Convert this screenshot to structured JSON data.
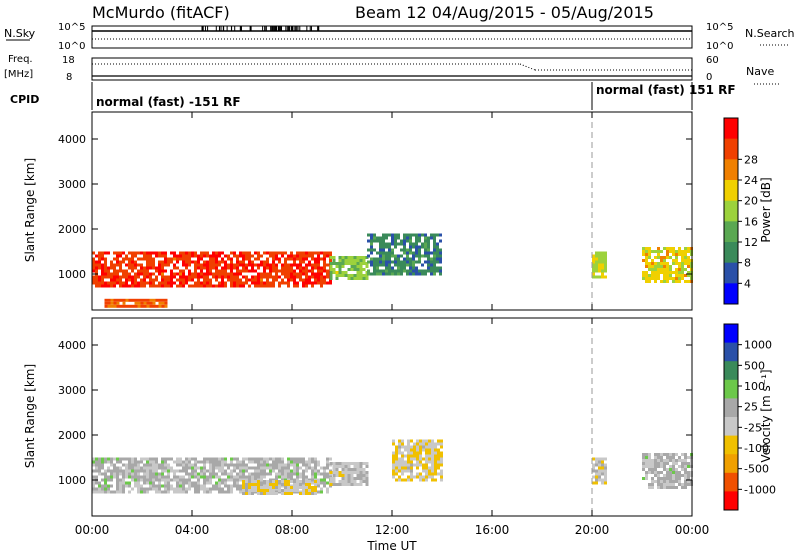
{
  "header": {
    "title": "McMurdo (fitACF)",
    "beam_date": "Beam 12 04/Aug/2015 - 05/Aug/2015"
  },
  "status_panels": {
    "nsky_label": "N.Sky",
    "nsky_ticks": [
      "10^5",
      "10^0"
    ],
    "nsearch_label": "N.Search",
    "nsearch_ticks": [
      "10^5",
      "10^0"
    ],
    "freq_label": "Freq.",
    "freq_unit": "[MHz]",
    "freq_ticks": [
      "18",
      "8"
    ],
    "nave_label": "Nave",
    "nave_ticks": [
      "60",
      "0"
    ],
    "cpid_label": "CPID",
    "cpid_segments": [
      {
        "label": "normal (fast) -151 RF",
        "start_hour": 0,
        "end_hour": 20
      },
      {
        "label": "normal (fast) 151 RF",
        "start_hour": 20,
        "end_hour": 24
      }
    ]
  },
  "colors": {
    "power_scale": [
      "#0000ff",
      "#2a50a8",
      "#3a8a5a",
      "#5aa852",
      "#9cd23c",
      "#f0d000",
      "#f08000",
      "#f04000",
      "#ff0000"
    ],
    "velocity_scale": [
      "#ff0000",
      "#f05000",
      "#f0a000",
      "#f0c000",
      "#c8c8c8",
      "#a8a8a8",
      "#6cc84a",
      "#3a8a5a",
      "#2a50a8",
      "#0000ff"
    ]
  },
  "chart_data": [
    {
      "type": "heatmap",
      "title": "",
      "xlabel": "Time UT",
      "ylabel": "Slant Range [km]",
      "xlim": [
        0,
        24
      ],
      "ylim": [
        200,
        4600
      ],
      "xticks": [
        "00:00",
        "04:00",
        "08:00",
        "12:00",
        "16:00",
        "20:00",
        "00:00"
      ],
      "yticks": [
        1000,
        2000,
        3000,
        4000
      ],
      "colorbar": {
        "label": "Power [dB]",
        "ticks": [
          "4",
          "8",
          "12",
          "16",
          "20",
          "24",
          "28"
        ],
        "range": [
          0,
          30
        ]
      },
      "series": [
        {
          "time_range": [
            0,
            9.5
          ],
          "range_km": [
            700,
            1500
          ],
          "value": 26
        },
        {
          "time_range": [
            9.5,
            11
          ],
          "range_km": [
            900,
            1400
          ],
          "value": 14
        },
        {
          "time_range": [
            11,
            14
          ],
          "range_km": [
            1000,
            1900
          ],
          "value": 8
        },
        {
          "time_range": [
            0.5,
            3
          ],
          "range_km": [
            250,
            450
          ],
          "value": 24
        },
        {
          "time_range": [
            20,
            20.5
          ],
          "range_km": [
            900,
            1500
          ],
          "value": 16
        },
        {
          "time_range": [
            22,
            24
          ],
          "range_km": [
            800,
            1600
          ],
          "value": 18
        }
      ]
    },
    {
      "type": "heatmap",
      "title": "",
      "xlabel": "Time UT",
      "ylabel": "Slant Range [km]",
      "xlim": [
        0,
        24
      ],
      "ylim": [
        200,
        4600
      ],
      "xticks": [
        "00:00",
        "04:00",
        "08:00",
        "12:00",
        "16:00",
        "20:00",
        "00:00"
      ],
      "yticks": [
        1000,
        2000,
        3000,
        4000
      ],
      "colorbar": {
        "label": "Velocity [m s⁻¹]",
        "ticks": [
          "1000",
          "500",
          "100",
          "25",
          "-25",
          "-100",
          "-500",
          "-1000"
        ],
        "range": [
          -1200,
          1200
        ]
      },
      "series": [
        {
          "time_range": [
            0,
            9.5
          ],
          "range_km": [
            700,
            1500
          ],
          "value": 60
        },
        {
          "time_range": [
            6,
            9
          ],
          "range_km": [
            700,
            1000
          ],
          "value": -150
        },
        {
          "time_range": [
            9.5,
            11
          ],
          "range_km": [
            900,
            1400
          ],
          "value": -50
        },
        {
          "time_range": [
            12,
            14
          ],
          "range_km": [
            1000,
            1900
          ],
          "value": -200
        },
        {
          "time_range": [
            20,
            20.5
          ],
          "range_km": [
            900,
            1500
          ],
          "value": -150
        },
        {
          "time_range": [
            22,
            24
          ],
          "range_km": [
            800,
            1600
          ],
          "value": 50
        }
      ]
    }
  ]
}
